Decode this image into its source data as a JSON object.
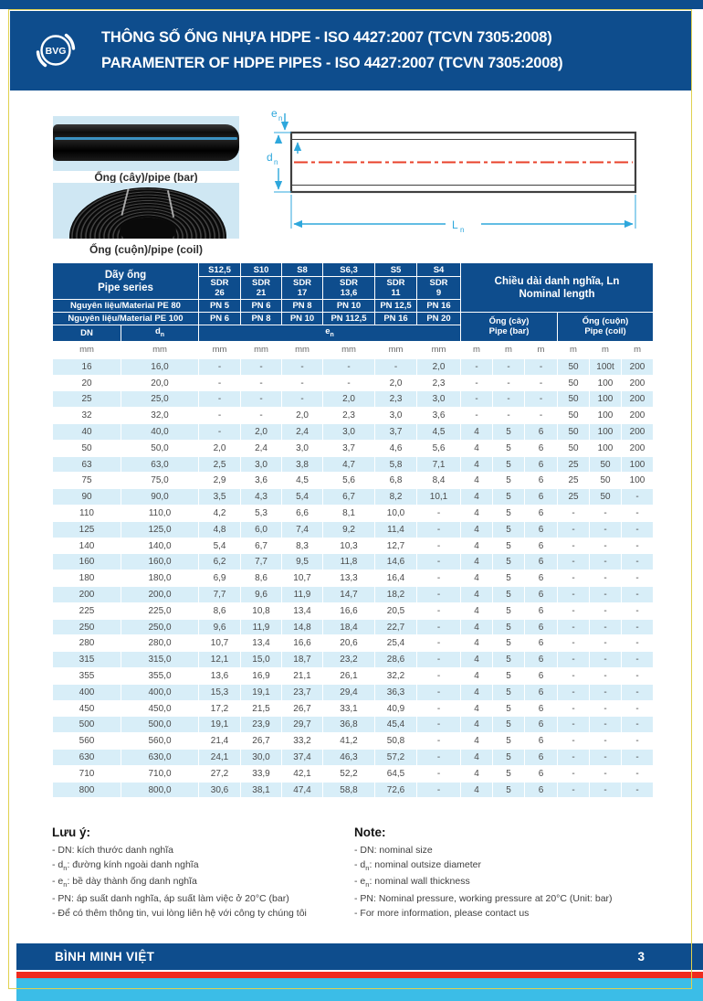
{
  "header": {
    "logo_text": "BVG",
    "title_line1": "THÔNG SỐ ỐNG NHỰA HDPE - ISO 4427:2007 (TCVN 7305:2008)",
    "title_line2": "PARAMENTER OF HDPE PIPES - ISO 4427:2007 (TCVN 7305:2008)"
  },
  "figures": {
    "bar_caption": "Ống (cây)/pipe (bar)",
    "coil_caption": "Ống (cuộn)/pipe (coil)",
    "diagram": {
      "label_e": "e",
      "label_d": "d",
      "label_L": "L",
      "sub_n": "n"
    }
  },
  "table": {
    "series_line1": "Dãy ống",
    "series_line2": "Pipe series",
    "s_values": [
      "S12,5",
      "S10",
      "S8",
      "S6,3",
      "S5",
      "S4"
    ],
    "sdr_label": "SDR",
    "sdr_values": [
      "26",
      "21",
      "17",
      "13,6",
      "11",
      "9"
    ],
    "length_line1": "Chiều dài danh nghĩa, Ln",
    "length_line2": "Nominal length",
    "pe80_label": "Nguyên liệu/Material PE 80",
    "pn_pe80": [
      "PN 5",
      "PN 6",
      "PN 8",
      "PN 10",
      "PN 12,5",
      "PN 16"
    ],
    "pe100_label": "Nguyên liệu/Material PE 100",
    "pn_pe100": [
      "PN 6",
      "PN 8",
      "PN 10",
      "PN 112,5",
      "PN 16",
      "PN 20"
    ],
    "bar_line1": "Ống (cây)",
    "bar_line2": "Pipe (bar)",
    "coil_line1": "Ống (cuộn)",
    "coil_line2": "Pipe (coil)",
    "dn_label": "DN",
    "d_letter": "d",
    "e_letter": "e",
    "sub_n": "n",
    "units": [
      "mm",
      "mm",
      "mm",
      "mm",
      "mm",
      "mm",
      "mm",
      "mm",
      "m",
      "m",
      "m",
      "m",
      "m",
      "m"
    ],
    "rows": [
      [
        "16",
        "16,0",
        "-",
        "-",
        "-",
        "-",
        "-",
        "2,0",
        "-",
        "-",
        "-",
        "50",
        "100t",
        "200"
      ],
      [
        "20",
        "20,0",
        "-",
        "-",
        "-",
        "-",
        "2,0",
        "2,3",
        "-",
        "-",
        "-",
        "50",
        "100",
        "200"
      ],
      [
        "25",
        "25,0",
        "-",
        "-",
        "-",
        "2,0",
        "2,3",
        "3,0",
        "-",
        "-",
        "-",
        "50",
        "100",
        "200"
      ],
      [
        "32",
        "32,0",
        "-",
        "-",
        "2,0",
        "2,3",
        "3,0",
        "3,6",
        "-",
        "-",
        "-",
        "50",
        "100",
        "200"
      ],
      [
        "40",
        "40,0",
        "-",
        "2,0",
        "2,4",
        "3,0",
        "3,7",
        "4,5",
        "4",
        "5",
        "6",
        "50",
        "100",
        "200"
      ],
      [
        "50",
        "50,0",
        "2,0",
        "2,4",
        "3,0",
        "3,7",
        "4,6",
        "5,6",
        "4",
        "5",
        "6",
        "50",
        "100",
        "200"
      ],
      [
        "63",
        "63,0",
        "2,5",
        "3,0",
        "3,8",
        "4,7",
        "5,8",
        "7,1",
        "4",
        "5",
        "6",
        "25",
        "50",
        "100"
      ],
      [
        "75",
        "75,0",
        "2,9",
        "3,6",
        "4,5",
        "5,6",
        "6,8",
        "8,4",
        "4",
        "5",
        "6",
        "25",
        "50",
        "100"
      ],
      [
        "90",
        "90,0",
        "3,5",
        "4,3",
        "5,4",
        "6,7",
        "8,2",
        "10,1",
        "4",
        "5",
        "6",
        "25",
        "50",
        "-"
      ],
      [
        "110",
        "110,0",
        "4,2",
        "5,3",
        "6,6",
        "8,1",
        "10,0",
        "-",
        "4",
        "5",
        "6",
        "-",
        "-",
        "-"
      ],
      [
        "125",
        "125,0",
        "4,8",
        "6,0",
        "7,4",
        "9,2",
        "11,4",
        "-",
        "4",
        "5",
        "6",
        "-",
        "-",
        "-"
      ],
      [
        "140",
        "140,0",
        "5,4",
        "6,7",
        "8,3",
        "10,3",
        "12,7",
        "-",
        "4",
        "5",
        "6",
        "-",
        "-",
        "-"
      ],
      [
        "160",
        "160,0",
        "6,2",
        "7,7",
        "9,5",
        "11,8",
        "14,6",
        "-",
        "4",
        "5",
        "6",
        "-",
        "-",
        "-"
      ],
      [
        "180",
        "180,0",
        "6,9",
        "8,6",
        "10,7",
        "13,3",
        "16,4",
        "-",
        "4",
        "5",
        "6",
        "-",
        "-",
        "-"
      ],
      [
        "200",
        "200,0",
        "7,7",
        "9,6",
        "11,9",
        "14,7",
        "18,2",
        "-",
        "4",
        "5",
        "6",
        "-",
        "-",
        "-"
      ],
      [
        "225",
        "225,0",
        "8,6",
        "10,8",
        "13,4",
        "16,6",
        "20,5",
        "-",
        "4",
        "5",
        "6",
        "-",
        "-",
        "-"
      ],
      [
        "250",
        "250,0",
        "9,6",
        "11,9",
        "14,8",
        "18,4",
        "22,7",
        "-",
        "4",
        "5",
        "6",
        "-",
        "-",
        "-"
      ],
      [
        "280",
        "280,0",
        "10,7",
        "13,4",
        "16,6",
        "20,6",
        "25,4",
        "-",
        "4",
        "5",
        "6",
        "-",
        "-",
        "-"
      ],
      [
        "315",
        "315,0",
        "12,1",
        "15,0",
        "18,7",
        "23,2",
        "28,6",
        "-",
        "4",
        "5",
        "6",
        "-",
        "-",
        "-"
      ],
      [
        "355",
        "355,0",
        "13,6",
        "16,9",
        "21,1",
        "26,1",
        "32,2",
        "-",
        "4",
        "5",
        "6",
        "-",
        "-",
        "-"
      ],
      [
        "400",
        "400,0",
        "15,3",
        "19,1",
        "23,7",
        "29,4",
        "36,3",
        "-",
        "4",
        "5",
        "6",
        "-",
        "-",
        "-"
      ],
      [
        "450",
        "450,0",
        "17,2",
        "21,5",
        "26,7",
        "33,1",
        "40,9",
        "-",
        "4",
        "5",
        "6",
        "-",
        "-",
        "-"
      ],
      [
        "500",
        "500,0",
        "19,1",
        "23,9",
        "29,7",
        "36,8",
        "45,4",
        "-",
        "4",
        "5",
        "6",
        "-",
        "-",
        "-"
      ],
      [
        "560",
        "560,0",
        "21,4",
        "26,7",
        "33,2",
        "41,2",
        "50,8",
        "-",
        "4",
        "5",
        "6",
        "-",
        "-",
        "-"
      ],
      [
        "630",
        "630,0",
        "24,1",
        "30,0",
        "37,4",
        "46,3",
        "57,2",
        "-",
        "4",
        "5",
        "6",
        "-",
        "-",
        "-"
      ],
      [
        "710",
        "710,0",
        "27,2",
        "33,9",
        "42,1",
        "52,2",
        "64,5",
        "-",
        "4",
        "5",
        "6",
        "-",
        "-",
        "-"
      ],
      [
        "800",
        "800,0",
        "30,6",
        "38,1",
        "47,4",
        "58,8",
        "72,6",
        "-",
        "4",
        "5",
        "6",
        "-",
        "-",
        "-"
      ]
    ]
  },
  "notes": {
    "vi_title": "Lưu ý:",
    "vi_items": [
      {
        "pre": "- DN: kích thước danh nghĩa",
        "sub": "",
        "post": ""
      },
      {
        "pre": "- d",
        "sub": "n",
        "post": ": đường kính ngoài danh nghĩa"
      },
      {
        "pre": "- e",
        "sub": "n",
        "post": ": bề dày thành ống danh nghĩa"
      },
      {
        "pre": "- PN: áp suất danh nghĩa, áp suất làm việc ở 20°C (bar)",
        "sub": "",
        "post": ""
      },
      {
        "pre": "- Để có thêm thông tin, vui lòng liên hệ với công ty chúng tôi",
        "sub": "",
        "post": ""
      }
    ],
    "en_title": "Note:",
    "en_items": [
      {
        "pre": "- DN: nominal size",
        "sub": "",
        "post": ""
      },
      {
        "pre": "- d",
        "sub": "n",
        "post": ": nominal outsize diameter"
      },
      {
        "pre": "- e",
        "sub": "n",
        "post": ": nominal wall thickness"
      },
      {
        "pre": "- PN: Nominal pressure, working pressure at 20°C (Unit: bar)",
        "sub": "",
        "post": ""
      },
      {
        "pre": "- For more information, please contact us",
        "sub": "",
        "post": ""
      }
    ]
  },
  "footer": {
    "company": "BÌNH MINH VIỆT",
    "page_number": "3"
  },
  "colors": {
    "primary_blue": "#0e4d8d",
    "light_row_blue": "#d8eef8",
    "cyan_stripe": "#3bbde7",
    "red_stripe": "#ef2b1e",
    "gold_border": "#e0d14e",
    "diagram_cyan": "#2ea7dc",
    "centerline_red": "#e8402a"
  }
}
